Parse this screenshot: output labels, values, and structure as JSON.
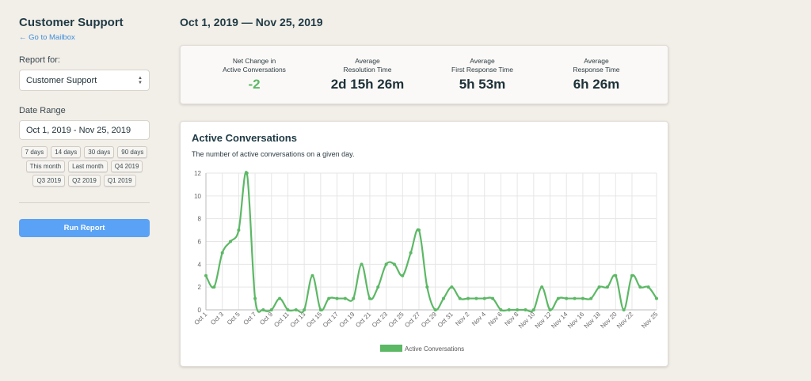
{
  "sidebar": {
    "title": "Customer Support",
    "back_link": "← Go to Mailbox",
    "report_for_label": "Report for:",
    "report_for_value": "Customer Support",
    "date_range_label": "Date Range",
    "date_range_value": "Oct 1, 2019 - Nov 25, 2019",
    "presets": [
      "7 days",
      "14 days",
      "30 days",
      "90 days",
      "This month",
      "Last month",
      "Q4 2019",
      "Q3 2019",
      "Q2 2019",
      "Q1 2019"
    ],
    "run_button": "Run Report"
  },
  "main": {
    "range_title": "Oct 1, 2019 — Nov 25, 2019",
    "stats": [
      {
        "label1": "Net Change in",
        "label2": "Active Conversations",
        "value": "-2"
      },
      {
        "label1": "Average",
        "label2": "Resolution Time",
        "value": "2d 15h 26m"
      },
      {
        "label1": "Average",
        "label2": "First Response Time",
        "value": "5h 53m"
      },
      {
        "label1": "Average",
        "label2": "Response Time",
        "value": "6h 26m"
      }
    ],
    "chart_title": "Active Conversations",
    "chart_subtitle": "The number of active conversations on a given day."
  },
  "colors": {
    "accent": "#5aa2f5",
    "series": "#5cb865",
    "positive": "#5cb865"
  },
  "chart_data": {
    "type": "line",
    "title": "Active Conversations",
    "subtitle": "The number of active conversations on a given day.",
    "xlabel": "",
    "ylabel": "",
    "ylim": [
      0,
      12
    ],
    "yticks": [
      0,
      2,
      4,
      6,
      8,
      10,
      12
    ],
    "grid": true,
    "legend": "bottom",
    "x": [
      "Oct 1",
      "Oct 2",
      "Oct 3",
      "Oct 4",
      "Oct 5",
      "Oct 6",
      "Oct 7",
      "Oct 8",
      "Oct 9",
      "Oct 10",
      "Oct 11",
      "Oct 12",
      "Oct 13",
      "Oct 14",
      "Oct 15",
      "Oct 16",
      "Oct 17",
      "Oct 18",
      "Oct 19",
      "Oct 20",
      "Oct 21",
      "Oct 22",
      "Oct 23",
      "Oct 24",
      "Oct 25",
      "Oct 26",
      "Oct 27",
      "Oct 28",
      "Oct 29",
      "Oct 30",
      "Oct 31",
      "Nov 1",
      "Nov 2",
      "Nov 3",
      "Nov 4",
      "Nov 5",
      "Nov 6",
      "Nov 7",
      "Nov 8",
      "Nov 9",
      "Nov 10",
      "Nov 11",
      "Nov 12",
      "Nov 13",
      "Nov 14",
      "Nov 15",
      "Nov 16",
      "Nov 17",
      "Nov 18",
      "Nov 19",
      "Nov 20",
      "Nov 21",
      "Nov 22",
      "Nov 23",
      "Nov 24",
      "Nov 25"
    ],
    "x_tick_labels": [
      "Oct 1",
      "Oct 3",
      "Oct 5",
      "Oct 7",
      "Oct 9",
      "Oct 11",
      "Oct 13",
      "Oct 15",
      "Oct 17",
      "Oct 19",
      "Oct 21",
      "Oct 23",
      "Oct 25",
      "Oct 27",
      "Oct 29",
      "Oct 31",
      "Nov 2",
      "Nov 4",
      "Nov 6",
      "Nov 8",
      "Nov 10",
      "Nov 12",
      "Nov 14",
      "Nov 16",
      "Nov 18",
      "Nov 20",
      "Nov 22",
      "Nov 25"
    ],
    "series": [
      {
        "name": "Active Conversations",
        "values": [
          3,
          2,
          5,
          6,
          7,
          12,
          1,
          0,
          0,
          1,
          0,
          0,
          0,
          3,
          0,
          1,
          1,
          1,
          1,
          4,
          1,
          2,
          4,
          4,
          3,
          5,
          7,
          2,
          0,
          1,
          2,
          1,
          1,
          1,
          1,
          1,
          0,
          0,
          0,
          0,
          0,
          2,
          0,
          1,
          1,
          1,
          1,
          1,
          2,
          2,
          3,
          0,
          3,
          2,
          2,
          1
        ]
      }
    ]
  }
}
